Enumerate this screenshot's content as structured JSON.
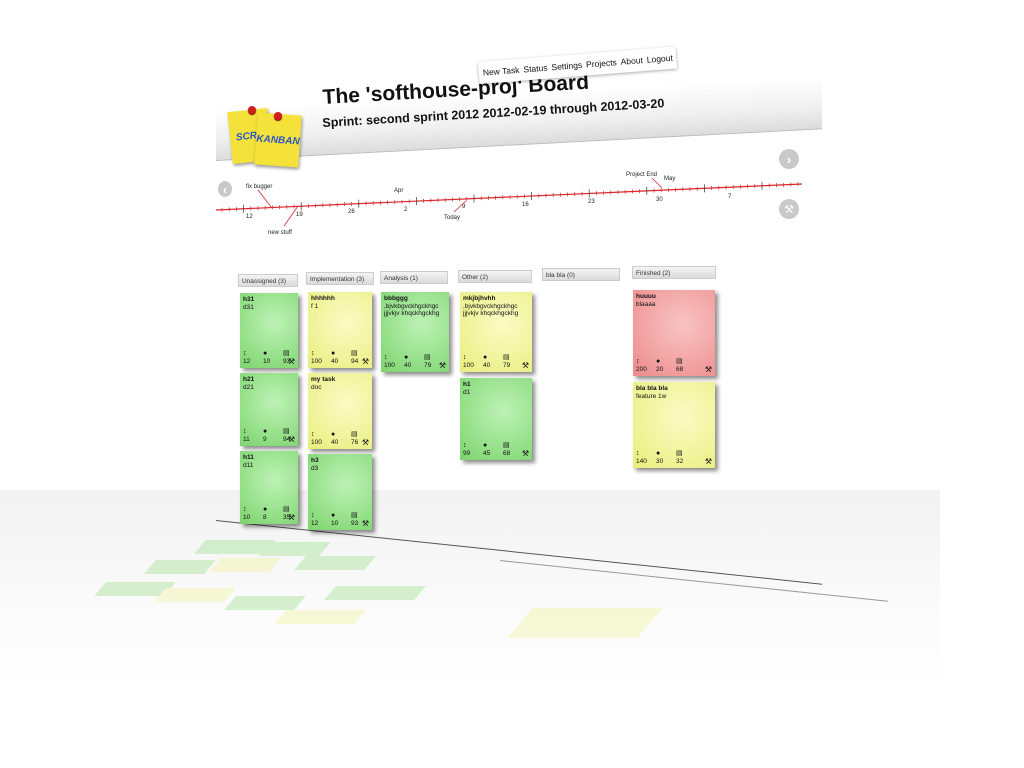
{
  "menu": {
    "items": [
      {
        "id": "new-task",
        "label": "New Task"
      },
      {
        "id": "status",
        "label": "Status"
      },
      {
        "id": "settings",
        "label": "Settings"
      },
      {
        "id": "projects",
        "label": "Projects"
      },
      {
        "id": "about",
        "label": "About"
      },
      {
        "id": "logout",
        "label": "Logout"
      }
    ]
  },
  "logo": {
    "left_text": "SCRU",
    "right_text": "KANBAN"
  },
  "header": {
    "title": "The 'softhouse-proj' Board",
    "sprint": "Sprint: second sprint 2012 2012-02-19 through 2012-03-20"
  },
  "nav": {
    "next_icon": "chevron-right-icon",
    "prev_icon": "chevron-left-icon",
    "settings_icon": "wrench-icon"
  },
  "timeline": {
    "month_labels": [
      {
        "text": "Apr"
      },
      {
        "text": "May"
      }
    ],
    "tick_labels": [
      "12",
      "19",
      "26",
      "2",
      "9",
      "16",
      "23",
      "30",
      "7"
    ],
    "markers": [
      {
        "text": "fix bugger"
      },
      {
        "text": "new stuff"
      },
      {
        "text": "Today"
      },
      {
        "text": "Project End"
      }
    ]
  },
  "columns": [
    {
      "id": "unassigned",
      "header": "Unassigned (3)",
      "cards": [
        {
          "color": "green",
          "title": "h31",
          "desc": "d31",
          "stats": [
            "12",
            "10",
            "93"
          ]
        },
        {
          "color": "green",
          "title": "h21",
          "desc": "d21",
          "stats": [
            "11",
            "9",
            "94"
          ]
        },
        {
          "color": "green",
          "title": "h11",
          "desc": "d11",
          "stats": [
            "10",
            "8",
            "35"
          ]
        }
      ]
    },
    {
      "id": "implementation",
      "header": "Implementation (3)",
      "cards": [
        {
          "color": "yellow",
          "title": "hhhhhh",
          "desc": "f 1",
          "stats": [
            "100",
            "40",
            "94"
          ]
        },
        {
          "color": "yellow",
          "title": "my task",
          "desc": "doc",
          "stats": [
            "100",
            "40",
            "76"
          ]
        },
        {
          "color": "green",
          "title": "h3",
          "desc": "d3",
          "stats": [
            "12",
            "10",
            "93"
          ]
        }
      ]
    },
    {
      "id": "analysis",
      "header": "Analysis (1)",
      "cards": [
        {
          "color": "green",
          "title": "bbbggg",
          "desc": ",bjvkbgvckhgckhgc jjjvkjv khqckhgckhg",
          "stats": [
            "100",
            "40",
            "79"
          ]
        }
      ]
    },
    {
      "id": "other",
      "header": "Other (2)",
      "cards": [
        {
          "color": "yellow",
          "title": "mkjbjhvhh",
          "desc": ",bjvkbgvckhgckhgc jjjvkjv khqckhgckhg",
          "stats": [
            "100",
            "40",
            "79"
          ]
        },
        {
          "color": "green",
          "title": "h1",
          "desc": "d1",
          "stats": [
            "99",
            "45",
            "68"
          ]
        }
      ]
    },
    {
      "id": "blabla",
      "header": "bla bla (0)",
      "cards": []
    },
    {
      "id": "finished",
      "header": "Finished (2)",
      "cards": [
        {
          "color": "red",
          "title": "huuuu",
          "desc": "blaaaa",
          "stats": [
            "200",
            "20",
            "68"
          ]
        },
        {
          "color": "yellow",
          "title": "bla bla bla",
          "desc": "feature 1w",
          "stats": [
            "140",
            "30",
            "32"
          ]
        }
      ]
    }
  ],
  "stat_icons": [
    "priority-arrows-icon",
    "clock-icon",
    "calendar-icon"
  ],
  "colors": {
    "green": "#8fdc82",
    "yellow": "#f1f39e",
    "red": "#f09a9a",
    "timeline": "#d8262b"
  }
}
